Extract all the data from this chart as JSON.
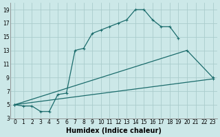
{
  "xlabel": "Humidex (Indice chaleur)",
  "bg_color": "#cce8e8",
  "grid_color": "#aacccc",
  "line_color": "#1a6b6b",
  "xlim": [
    -0.5,
    23.5
  ],
  "ylim": [
    3,
    20
  ],
  "xticks": [
    0,
    1,
    2,
    3,
    4,
    5,
    6,
    7,
    8,
    9,
    10,
    11,
    12,
    13,
    14,
    15,
    16,
    17,
    18,
    19,
    20,
    21,
    22,
    23
  ],
  "yticks": [
    3,
    5,
    7,
    9,
    11,
    13,
    15,
    17,
    19
  ],
  "curve_x": [
    0,
    1,
    2,
    3,
    4,
    5,
    6,
    7,
    8,
    9,
    10,
    11,
    12,
    13,
    14,
    15,
    16,
    17,
    18,
    19,
    20,
    21,
    22,
    23
  ],
  "curve_y": [
    5,
    4.8,
    4.8,
    4,
    4,
    6.5,
    6.7,
    13.0,
    13.3,
    15.5,
    16.0,
    16.5,
    17.0,
    17.5,
    19.0,
    19.0,
    17.5,
    16.5,
    16.5,
    14.8,
    null,
    null,
    null,
    null
  ],
  "line2_x": [
    0,
    20,
    23
  ],
  "line2_y": [
    5,
    13,
    9
  ],
  "line3_x": [
    0,
    23
  ],
  "line3_y": [
    5,
    8.8
  ],
  "lw": 0.9,
  "ms": 3.0,
  "xlabel_fontsize": 7,
  "tick_fontsize": 5.5
}
